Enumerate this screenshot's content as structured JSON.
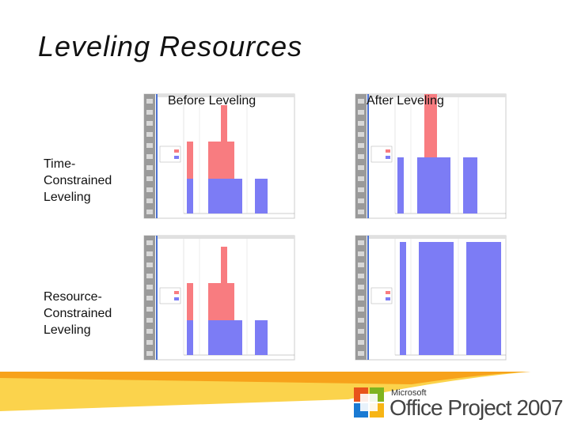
{
  "title": "Leveling Resources",
  "columns": [
    "Before Leveling",
    "After Leveling"
  ],
  "rows": [
    "Time-Constrained Leveling",
    "Resource-Constrained Leveling"
  ],
  "logo": {
    "brand": "Microsoft",
    "product": "Office Project 2007"
  }
}
